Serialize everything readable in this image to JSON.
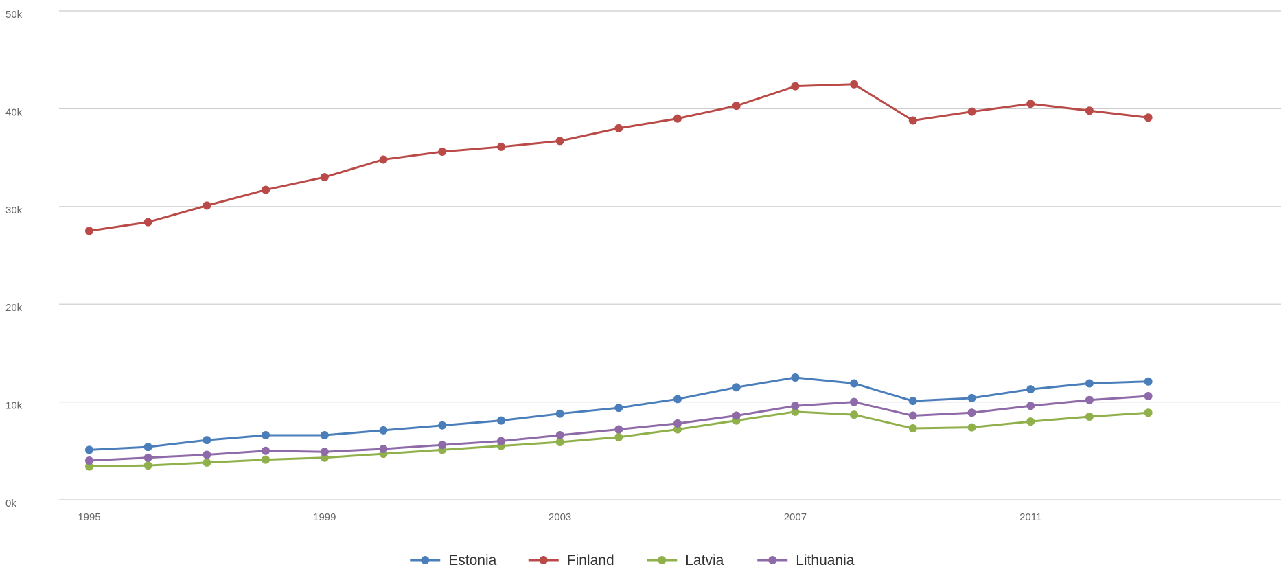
{
  "chart_data": {
    "type": "line",
    "title": "",
    "xlabel": "",
    "ylabel": "",
    "x": [
      1995,
      1996,
      1997,
      1998,
      1999,
      2000,
      2001,
      2002,
      2003,
      2004,
      2005,
      2006,
      2007,
      2008,
      2009,
      2010,
      2011,
      2012,
      2013
    ],
    "xlim": [
      1995,
      2015
    ],
    "ylim": [
      0,
      50000
    ],
    "x_ticks": [
      {
        "value": 1995,
        "label": "1995"
      },
      {
        "value": 1999,
        "label": "1999"
      },
      {
        "value": 2003,
        "label": "2003"
      },
      {
        "value": 2007,
        "label": "2007"
      },
      {
        "value": 2011,
        "label": "2011"
      }
    ],
    "y_ticks": [
      {
        "value": 0,
        "label": "0k"
      },
      {
        "value": 10000,
        "label": "10k"
      },
      {
        "value": 20000,
        "label": "20k"
      },
      {
        "value": 30000,
        "label": "30k"
      },
      {
        "value": 40000,
        "label": "40k"
      },
      {
        "value": 50000,
        "label": "50k"
      }
    ],
    "grid": true,
    "legend_position": "bottom-center",
    "series": [
      {
        "name": "Estonia",
        "color": "#4a7ebb",
        "values": [
          5100,
          5400,
          6100,
          6600,
          6600,
          7100,
          7600,
          8100,
          8800,
          9400,
          10300,
          11500,
          12500,
          11900,
          10100,
          10400,
          11300,
          11900,
          12100
        ]
      },
      {
        "name": "Finland",
        "color": "#b94a48",
        "values": [
          27500,
          28400,
          30100,
          31700,
          33000,
          34800,
          35600,
          36100,
          36700,
          38000,
          39000,
          40300,
          42300,
          42500,
          38800,
          39700,
          40500,
          39800,
          39100
        ]
      },
      {
        "name": "Latvia",
        "color": "#8fb04a",
        "values": [
          3400,
          3500,
          3800,
          4100,
          4300,
          4700,
          5100,
          5500,
          5900,
          6400,
          7200,
          8100,
          9000,
          8700,
          7300,
          7400,
          8000,
          8500,
          8900
        ]
      },
      {
        "name": "Lithuania",
        "color": "#8e6aa8",
        "values": [
          4000,
          4300,
          4600,
          5000,
          4900,
          5200,
          5600,
          6000,
          6600,
          7200,
          7800,
          8600,
          9600,
          10000,
          8600,
          8900,
          9600,
          10200,
          10600
        ]
      }
    ]
  }
}
